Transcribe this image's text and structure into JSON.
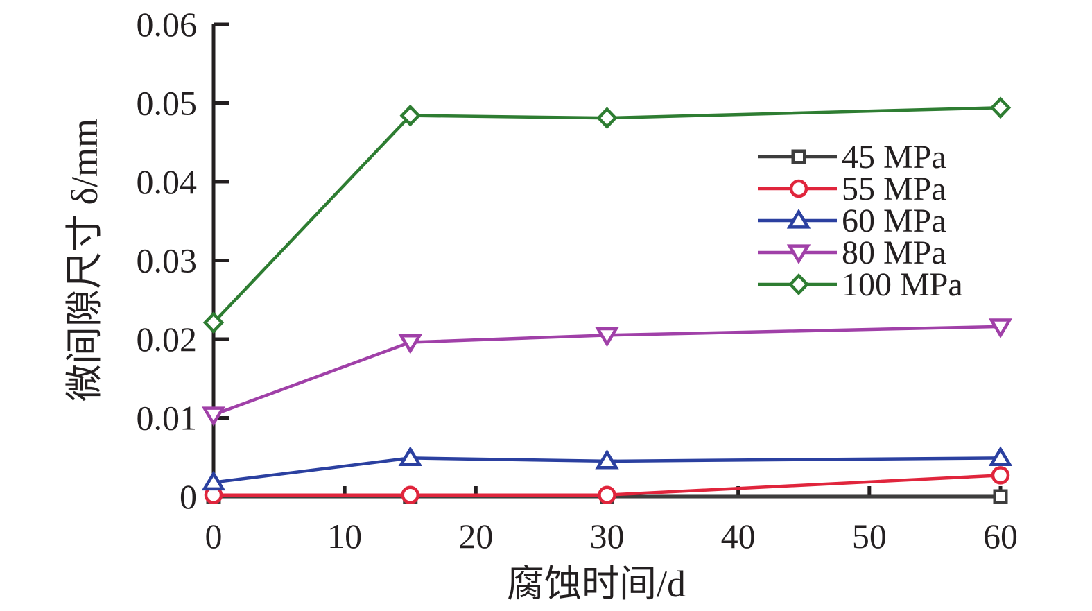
{
  "chart_data": {
    "type": "line",
    "xlabel": "腐蚀时间/d",
    "ylabel": "微间隙尺寸 δ/mm",
    "xlim": [
      0,
      60
    ],
    "ylim": [
      0,
      0.06
    ],
    "x_ticks": [
      0,
      10,
      20,
      30,
      40,
      50,
      60
    ],
    "y_ticks": [
      0,
      0.01,
      0.02,
      0.03,
      0.04,
      0.05,
      0.06
    ],
    "x_tick_labels": [
      "0",
      "10",
      "20",
      "30",
      "40",
      "50",
      "60"
    ],
    "y_tick_labels": [
      "0",
      "0.01",
      "0.02",
      "0.03",
      "0.04",
      "0.05",
      "0.06"
    ],
    "grid": false,
    "legend_position": "top-right",
    "x": [
      0,
      15,
      30,
      60
    ],
    "series": [
      {
        "name": "45 MPa",
        "marker": "square",
        "color": "#3d3d3d",
        "values": [
          0,
          0,
          0,
          0
        ]
      },
      {
        "name": "55 MPa",
        "marker": "circle",
        "color": "#e0253c",
        "values": [
          0.0002,
          0.0002,
          0.0002,
          0.0027
        ]
      },
      {
        "name": "60 MPa",
        "marker": "triangle-up",
        "color": "#2b40a0",
        "values": [
          0.0018,
          0.0049,
          0.0045,
          0.0049
        ]
      },
      {
        "name": "80 MPa",
        "marker": "triangle-down",
        "color": "#a040a8",
        "values": [
          0.0104,
          0.0196,
          0.0205,
          0.0216
        ]
      },
      {
        "name": "100 MPa",
        "marker": "diamond",
        "color": "#2e7d32",
        "values": [
          0.0221,
          0.0484,
          0.0481,
          0.0494
        ]
      }
    ]
  }
}
